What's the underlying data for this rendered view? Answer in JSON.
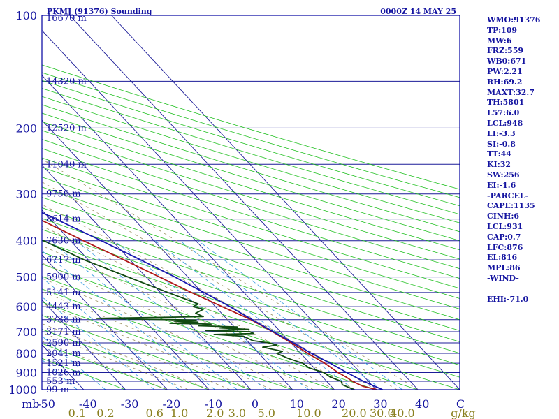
{
  "header": {
    "station": "PKMJ (91376) Sounding",
    "time": "0000Z 14 MAY 25"
  },
  "colors": {
    "frame": "#0000a0",
    "isobar": "#1c1c98",
    "skewed_isotherm": "#1c1c98",
    "dry_adiabat": "#20c020",
    "moist_adiabat": "#9a9060",
    "mixing_ratio": "#40a0e0",
    "temperature": "#b01818",
    "dewpoint": "#104a10",
    "parcel": "#1818b0",
    "label_blue": "#1414a0",
    "label_olive": "#8a8020"
  },
  "chart_data": {
    "type": "line",
    "title": "PKMJ (91376) Sounding",
    "subtitle": "0000Z 14 MAY 25",
    "xlabel": "C",
    "ylabel": "mb",
    "xlim": [
      -50,
      50
    ],
    "ylim": [
      1000,
      100
    ],
    "y_scale": "log",
    "pressure_ticks": [
      "100",
      "200",
      "300",
      "400",
      "500",
      "600",
      "700",
      "800",
      "900",
      "1000"
    ],
    "temperature_ticks": [
      "-50",
      "-40",
      "-30",
      "-20",
      "-10",
      "0",
      "10",
      "20",
      "30",
      "40",
      "C"
    ],
    "mixing_ratio_ticks": [
      "0.1",
      "0.2",
      "0.6",
      "1.0",
      "2.0",
      "3.0",
      "5.0",
      "10.0",
      "20.0",
      "30.0",
      "40.0",
      "g/kg"
    ],
    "height_levels": [
      {
        "pressure": 100,
        "label": "16670 m"
      },
      {
        "pressure": 150,
        "label": "14320 m"
      },
      {
        "pressure": 200,
        "label": "12520 m"
      },
      {
        "pressure": 250,
        "label": "11040 m"
      },
      {
        "pressure": 300,
        "label": "9750 m"
      },
      {
        "pressure": 350,
        "label": "8614 m"
      },
      {
        "pressure": 400,
        "label": "7630 m"
      },
      {
        "pressure": 450,
        "label": "6717 m"
      },
      {
        "pressure": 500,
        "label": "5900 m"
      },
      {
        "pressure": 550,
        "label": "5141 m"
      },
      {
        "pressure": 600,
        "label": "4443 m"
      },
      {
        "pressure": 650,
        "label": "3788 m"
      },
      {
        "pressure": 700,
        "label": "3171 m"
      },
      {
        "pressure": 750,
        "label": "2590 m"
      },
      {
        "pressure": 800,
        "label": "2041 m"
      },
      {
        "pressure": 850,
        "label": "1521 m"
      },
      {
        "pressure": 900,
        "label": "1026 m"
      },
      {
        "pressure": 950,
        "label": "553 m"
      },
      {
        "pressure": 1000,
        "label": "99 m"
      }
    ],
    "series": [
      {
        "name": "",
        "role": "temperature",
        "points": [
          [
            1000,
            30.2
          ],
          [
            980,
            27.6
          ],
          [
            950,
            26.2
          ],
          [
            925,
            25.6
          ],
          [
            900,
            24.7
          ],
          [
            850,
            23.6
          ],
          [
            800,
            21.7
          ],
          [
            750,
            20.1
          ],
          [
            700,
            18.1
          ],
          [
            650,
            15.6
          ],
          [
            600,
            11.6
          ],
          [
            550,
            7.4
          ],
          [
            500,
            3.2
          ],
          [
            450,
            -1.5
          ],
          [
            400,
            -6.9
          ],
          [
            350,
            -12.7
          ],
          [
            300,
            -19.4
          ],
          [
            250,
            -30.8
          ],
          [
            200,
            -44.2
          ],
          [
            150,
            -59.2
          ],
          [
            120,
            -70.7
          ],
          [
            107,
            -75.9
          ],
          [
            100,
            -73.3
          ]
        ]
      },
      {
        "name": "",
        "role": "dewpoint",
        "points": [
          [
            1000,
            24.7
          ],
          [
            970,
            23.0
          ],
          [
            950,
            23.5
          ],
          [
            925,
            21.8
          ],
          [
            900,
            21.3
          ],
          [
            875,
            18.8
          ],
          [
            850,
            18.3
          ],
          [
            825,
            15.9
          ],
          [
            800,
            14.3
          ],
          [
            790,
            16.1
          ],
          [
            770,
            12.3
          ],
          [
            760,
            16.1
          ],
          [
            750,
            14.7
          ],
          [
            740,
            11.4
          ],
          [
            720,
            10.1
          ],
          [
            712,
            3.5
          ],
          [
            708,
            13.2
          ],
          [
            700,
            12.7
          ],
          [
            695,
            2.4
          ],
          [
            690,
            13.0
          ],
          [
            684,
            6.3
          ],
          [
            680,
            10.7
          ],
          [
            675,
            1.7
          ],
          [
            668,
            5.1
          ],
          [
            665,
            -4.6
          ],
          [
            660,
            2.4
          ],
          [
            656,
            -3.1
          ],
          [
            652,
            2.4
          ],
          [
            645,
            -21.0
          ],
          [
            638,
            4.9
          ],
          [
            625,
            3.8
          ],
          [
            610,
            6.5
          ],
          [
            600,
            4.7
          ],
          [
            590,
            6.5
          ],
          [
            550,
            1.8
          ],
          [
            500,
            -4.3
          ],
          [
            450,
            -11.0
          ],
          [
            400,
            -16.4
          ],
          [
            300,
            -62.6
          ],
          [
            250,
            -62.6
          ],
          [
            200,
            -70.7
          ],
          [
            150,
            -84.5
          ],
          [
            120,
            -86.6
          ],
          [
            100,
            -82.5
          ]
        ]
      },
      {
        "name": "",
        "role": "parcel",
        "points": [
          [
            1000,
            31.5
          ],
          [
            950,
            28.8
          ],
          [
            900,
            26.8
          ],
          [
            850,
            24.9
          ],
          [
            800,
            22.6
          ],
          [
            750,
            20.6
          ],
          [
            700,
            18.3
          ],
          [
            650,
            15.9
          ],
          [
            600,
            13.5
          ],
          [
            550,
            10.4
          ],
          [
            500,
            6.9
          ],
          [
            450,
            2.5
          ],
          [
            400,
            -2.6
          ],
          [
            350,
            -8.7
          ],
          [
            300,
            -16.1
          ],
          [
            250,
            -25.4
          ],
          [
            200,
            -37.5
          ],
          [
            150,
            -53.8
          ],
          [
            120,
            -65.8
          ],
          [
            107,
            -71.9
          ]
        ]
      }
    ]
  },
  "indices": [
    "WMO:91376",
    "TP:109",
    "MW:6",
    "FRZ:559",
    "WB0:671",
    "PW:2.21",
    "RH:69.2",
    "MAXT:32.7",
    "TH:5801",
    "L57:6.0",
    "LCL:948",
    "LI:-3.3",
    "SI:-0.8",
    "TT:44",
    "KI:32",
    "SW:256",
    "EI:-1.6",
    "-PARCEL-",
    "CAPE:1135",
    "CINH:6",
    "LCL:931",
    "CAP:0.7",
    "LFC:876",
    "EL:816",
    "MPL:86",
    "-WIND-",
    "",
    "EHI:-71.0"
  ]
}
